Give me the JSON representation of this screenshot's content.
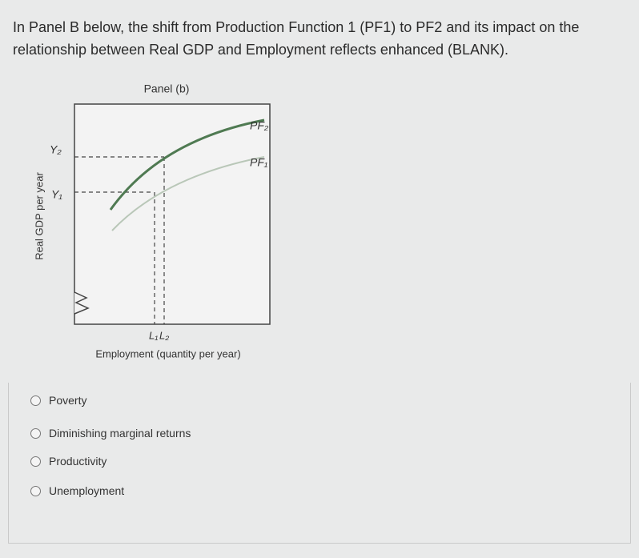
{
  "question": "In Panel B below, the shift from Production Function 1 (PF1) to PF2 and its impact on the relationship between Real GDP and Employment reflects enhanced (BLANK).",
  "diagram": {
    "title": "Panel (b)",
    "y_axis_label": "Real GDP per year",
    "x_axis_label": "Employment (quantity per year)",
    "curve_labels": [
      "PF₂",
      "PF₁"
    ],
    "y_labels": [
      "Y₂",
      "Y₁"
    ],
    "x_labels": [
      "L₁",
      "L₂"
    ]
  },
  "options": [
    "Poverty",
    "Diminishing marginal returns",
    "Productivity",
    "Unemployment"
  ]
}
